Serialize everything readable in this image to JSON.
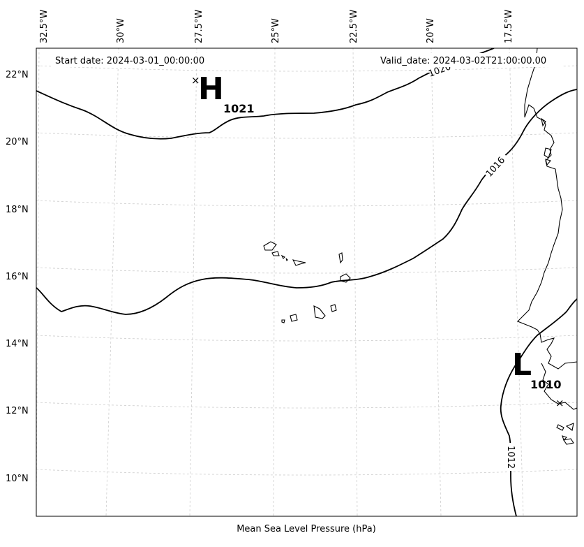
{
  "header": {
    "start_date": "Start date: 2024-03-01_00:00:00",
    "valid_date": "Valid_date: 2024-03-02T21:00:00.00"
  },
  "longitude_labels": [
    "32.5°W",
    "30°W",
    "27.5°W",
    "25°W",
    "22.5°W",
    "20°W",
    "17.5°W"
  ],
  "latitude_labels": [
    "22°N",
    "20°N",
    "18°N",
    "16°N",
    "14°N",
    "12°N",
    "10°N"
  ],
  "isobar_labels": [
    "1020",
    "1016",
    "1012"
  ],
  "pressure_centers": [
    {
      "letter": "H",
      "value": "1021"
    },
    {
      "letter": "L",
      "value": "1010"
    }
  ],
  "caption": "Mean Sea Level Pressure (hPa)"
}
